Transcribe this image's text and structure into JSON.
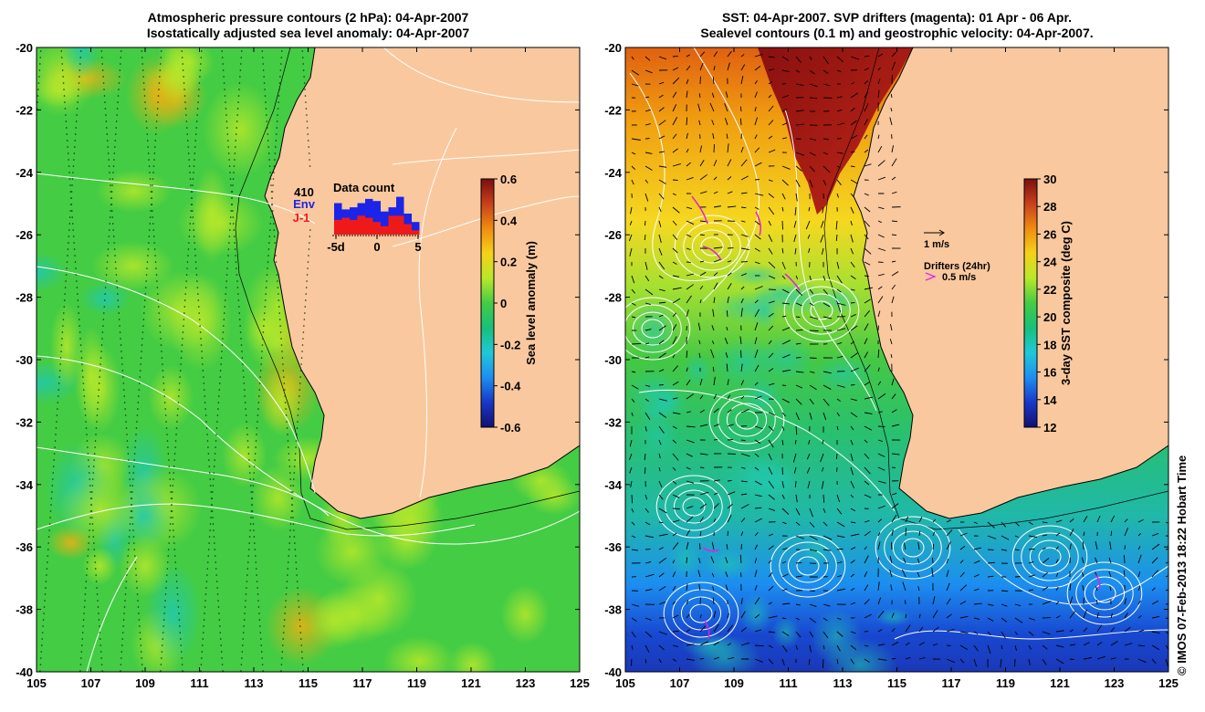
{
  "left_panel": {
    "title_line1": "Atmospheric pressure contours (2 hPa): 04-Apr-2007",
    "title_line2": "Isostatically adjusted sea level anomaly: 04-Apr-2007",
    "colorbar": {
      "label": "Sea level anomaly (m)",
      "ticks": [
        "0.6",
        "0.4",
        "0.2",
        "0",
        "-0.2",
        "-0.4",
        "-0.6"
      ],
      "stops": [
        "#7a0f0f",
        "#c8401c",
        "#f08c10",
        "#f5d21a",
        "#b8e82a",
        "#44cc44",
        "#18c07a",
        "#20c8d8",
        "#1c8ef0",
        "#1838c8",
        "#101070"
      ]
    },
    "inset": {
      "count": "410",
      "env_label": "Env",
      "j1_label": "J-1",
      "title": "Data count",
      "xticks": [
        "-5d",
        "0",
        "5"
      ],
      "env_color": "#1c24e8",
      "j1_color": "#ee1a1a",
      "env_bars": [
        0.75,
        0.6,
        0.65,
        0.75,
        0.85,
        0.8,
        0.55,
        0.65,
        0.9,
        0.5,
        0.3
      ],
      "j1_bars": [
        0.35,
        0.4,
        0.35,
        0.45,
        0.4,
        0.3,
        0.2,
        0.45,
        0.45,
        0.25,
        0.1
      ]
    }
  },
  "right_panel": {
    "title_line1": "SST: 04-Apr-2007. SVP drifters (magenta): 01 Apr - 06 Apr.",
    "title_line2": "Sealevel contours (0.1 m) and geostrophic velocity: 04-Apr-2007.",
    "colorbar": {
      "label": "3-day SST composite (deg C)",
      "ticks": [
        "30",
        "28",
        "26",
        "24",
        "22",
        "20",
        "18",
        "16",
        "14",
        "12"
      ],
      "stops": [
        "#7a0f0f",
        "#c8401c",
        "#f08c10",
        "#f5d21a",
        "#b8e82a",
        "#44cc44",
        "#18c07a",
        "#20c8d8",
        "#1c8ef0",
        "#1838c8",
        "#101070"
      ]
    },
    "legend": {
      "velocity_label": "1 m/s",
      "drifters_label": "Drifters (24hr)",
      "drifters_speed": "0.5 m/s",
      "drifter_color": "#e020e0"
    }
  },
  "axes": {
    "xticks": [
      "105",
      "107",
      "109",
      "111",
      "113",
      "115",
      "117",
      "119",
      "121",
      "123",
      "125"
    ],
    "yticks": [
      "-20",
      "-22",
      "-24",
      "-26",
      "-28",
      "-30",
      "-32",
      "-34",
      "-36",
      "-38",
      "-40"
    ],
    "lon_range": [
      105,
      125
    ],
    "lat_range": [
      -20,
      -40
    ]
  },
  "colors": {
    "land": "#fac89e",
    "ocean_mid": "#44cc44",
    "contour": "#ffffff"
  },
  "credit": "© IMOS 07-Feb-2013 18:22 Hobart Time"
}
